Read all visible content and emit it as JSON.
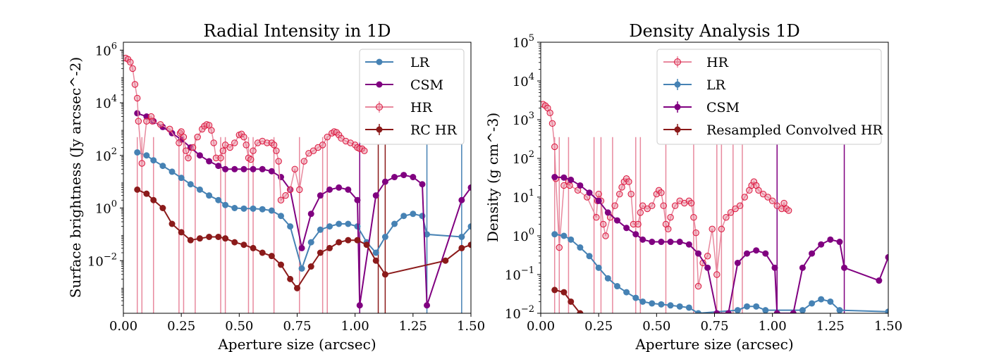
{
  "chart_data": [
    {
      "type": "line",
      "title": "Radial Intensity in 1D",
      "xlabel": "Aperture size (arcsec)",
      "ylabel": "Surface brightness (Jy arcsec^-2)",
      "xlim": [
        0,
        1.5
      ],
      "ylim": [
        0.0001,
        2000000
      ],
      "yscale": "log",
      "grid": false,
      "legend_placement": "top-right",
      "xticks": [
        {
          "v": 0.0,
          "label": "0.00"
        },
        {
          "v": 0.25,
          "label": "0.25"
        },
        {
          "v": 0.5,
          "label": "0.50"
        },
        {
          "v": 0.75,
          "label": "0.75"
        },
        {
          "v": 1.0,
          "label": "1.00"
        },
        {
          "v": 1.25,
          "label": "1.25"
        },
        {
          "v": 1.5,
          "label": "1.50"
        }
      ],
      "yticks": [
        {
          "v": 0.01,
          "b": "10",
          "e": "−2"
        },
        {
          "v": 1,
          "b": "10",
          "e": "0"
        },
        {
          "v": 100,
          "b": "10",
          "e": "2"
        },
        {
          "v": 10000,
          "b": "10",
          "e": "4"
        },
        {
          "v": 1000000,
          "b": "10",
          "e": "6"
        }
      ],
      "legend": [
        "LR",
        "CSM",
        "HR",
        "RC HR"
      ],
      "series": [
        {
          "name": "LR",
          "color": "#4682b4",
          "marker": "filled",
          "line": true,
          "x": [
            0.06,
            0.1,
            0.13,
            0.17,
            0.21,
            0.25,
            0.29,
            0.33,
            0.37,
            0.41,
            0.44,
            0.48,
            0.52,
            0.56,
            0.6,
            0.64,
            0.68,
            0.72,
            0.77,
            0.81,
            0.85,
            0.89,
            0.93,
            0.97,
            1.01,
            1.05,
            1.09,
            1.13,
            1.17,
            1.21,
            1.25,
            1.29,
            1.31,
            1.46,
            1.5
          ],
          "y": [
            130,
            100,
            65,
            40,
            24,
            14,
            8,
            5,
            3,
            2,
            1.3,
            1,
            0.95,
            0.95,
            0.9,
            0.8,
            0.5,
            0.2,
            0.005,
            0.05,
            0.15,
            0.2,
            0.25,
            0.25,
            0.2,
            0.05,
            0.02,
            0.08,
            0.25,
            0.5,
            0.6,
            0.5,
            0.1,
            0.08,
            0.2
          ]
        },
        {
          "name": "CSM",
          "color": "#800080",
          "marker": "filled",
          "line": true,
          "x": [
            0.06,
            0.1,
            0.13,
            0.17,
            0.21,
            0.25,
            0.29,
            0.33,
            0.37,
            0.41,
            0.44,
            0.48,
            0.52,
            0.56,
            0.6,
            0.64,
            0.68,
            0.72,
            0.77,
            0.81,
            0.85,
            0.89,
            0.93,
            0.97,
            1.01,
            1.02,
            1.09,
            1.13,
            1.17,
            1.21,
            1.25,
            1.29,
            1.31,
            1.46,
            1.5
          ],
          "y": [
            4000,
            3000,
            2000,
            1200,
            700,
            400,
            200,
            100,
            60,
            40,
            30,
            30,
            30,
            30,
            30,
            25,
            15,
            5,
            0.03,
            0.6,
            3,
            5,
            6,
            5,
            2,
            0.0002,
            3,
            10,
            15,
            18,
            15,
            8,
            0.0002,
            2,
            6
          ]
        },
        {
          "name": "HR",
          "color": "#e8899e",
          "marker": "open",
          "line": true,
          "x": [
            0.01,
            0.02,
            0.03,
            0.04,
            0.05,
            0.06,
            0.065,
            0.08,
            0.1,
            0.12,
            0.125,
            0.16,
            0.2,
            0.24,
            0.245,
            0.25,
            0.26,
            0.27,
            0.28,
            0.3,
            0.32,
            0.34,
            0.35,
            0.36,
            0.37,
            0.38,
            0.39,
            0.4,
            0.42,
            0.43,
            0.44,
            0.46,
            0.48,
            0.5,
            0.51,
            0.52,
            0.53,
            0.54,
            0.55,
            0.56,
            0.58,
            0.6,
            0.62,
            0.64,
            0.65,
            0.66,
            0.67,
            0.68,
            0.7,
            0.72,
            0.74,
            0.76,
            0.78,
            0.8,
            0.82,
            0.84,
            0.86,
            0.88,
            0.9,
            0.91,
            0.92,
            0.93,
            0.94,
            0.96,
            0.98,
            1.0,
            1.01,
            1.02,
            1.03,
            1.04
          ],
          "y": [
            500000,
            450000,
            350000,
            200000,
            50000,
            15000,
            2000,
            50,
            2000,
            3000,
            2000,
            1500,
            1000,
            300,
            700,
            800,
            500,
            150,
            80,
            200,
            500,
            1000,
            1300,
            1500,
            1400,
            900,
            300,
            80,
            80,
            150,
            250,
            200,
            300,
            600,
            650,
            500,
            250,
            80,
            70,
            150,
            300,
            350,
            300,
            300,
            250,
            150,
            60,
            2,
            3,
            5,
            30,
            5,
            60,
            120,
            150,
            200,
            250,
            500,
            700,
            800,
            750,
            600,
            450,
            350,
            300,
            250,
            200,
            180,
            180,
            150
          ]
        },
        {
          "name": "RC HR",
          "color": "#8b1a1a",
          "marker": "filled",
          "line": true,
          "x": [
            0.06,
            0.1,
            0.13,
            0.17,
            0.21,
            0.25,
            0.29,
            0.33,
            0.37,
            0.41,
            0.44,
            0.48,
            0.52,
            0.56,
            0.6,
            0.64,
            0.68,
            0.72,
            0.75,
            0.81,
            0.85,
            0.89,
            0.93,
            0.97,
            1.01,
            1.05,
            1.09,
            1.13,
            1.39,
            1.46,
            1.5
          ],
          "y": [
            5,
            3.5,
            2,
            1,
            0.25,
            0.12,
            0.06,
            0.07,
            0.08,
            0.08,
            0.07,
            0.05,
            0.04,
            0.03,
            0.02,
            0.015,
            0.007,
            0.002,
            0.0009,
            0.006,
            0.02,
            0.03,
            0.05,
            0.06,
            0.06,
            0.04,
            0.01,
            0.003,
            0.01,
            0.03,
            0.04
          ]
        }
      ],
      "vlines": [
        {
          "x": 0.06,
          "color": "#e8899e"
        },
        {
          "x": 0.08,
          "color": "#e8899e"
        },
        {
          "x": 0.13,
          "color": "#e8899e"
        },
        {
          "x": 0.24,
          "color": "#e8899e"
        },
        {
          "x": 0.26,
          "color": "#e8899e"
        },
        {
          "x": 0.31,
          "color": "#e8899e"
        },
        {
          "x": 0.42,
          "color": "#e8899e"
        },
        {
          "x": 0.44,
          "color": "#e8899e"
        },
        {
          "x": 0.54,
          "color": "#e8899e"
        },
        {
          "x": 0.56,
          "color": "#e8899e"
        },
        {
          "x": 0.65,
          "color": "#e8899e"
        },
        {
          "x": 0.76,
          "color": "#e8899e"
        },
        {
          "x": 0.86,
          "color": "#e8899e"
        },
        {
          "x": 0.88,
          "color": "#e8899e"
        },
        {
          "x": 1.02,
          "color": "#800080"
        },
        {
          "x": 1.1,
          "color": "#8b1a1a"
        },
        {
          "x": 1.13,
          "color": "#8b1a1a"
        },
        {
          "x": 1.31,
          "color": "#4682b4"
        },
        {
          "x": 1.46,
          "color": "#4682b4"
        }
      ]
    },
    {
      "type": "line",
      "title": "Density Analysis 1D",
      "xlabel": "Aperture size (arcsec)",
      "ylabel": "Density (g cm^-3)",
      "xlim": [
        0,
        1.5
      ],
      "ylim": [
        0.01,
        100000
      ],
      "yscale": "log",
      "grid": false,
      "legend_placement": "top-center",
      "xticks": [
        {
          "v": 0.0,
          "label": "0.00"
        },
        {
          "v": 0.25,
          "label": "0.25"
        },
        {
          "v": 0.5,
          "label": "0.50"
        },
        {
          "v": 0.75,
          "label": "0.75"
        },
        {
          "v": 1.0,
          "label": "1.00"
        },
        {
          "v": 1.25,
          "label": "1.25"
        },
        {
          "v": 1.5,
          "label": "1.50"
        }
      ],
      "yticks": [
        {
          "v": 0.01,
          "b": "10",
          "e": "−2"
        },
        {
          "v": 0.1,
          "b": "10",
          "e": "−1"
        },
        {
          "v": 1,
          "b": "10",
          "e": "0"
        },
        {
          "v": 10,
          "b": "10",
          "e": "1"
        },
        {
          "v": 100,
          "b": "10",
          "e": "2"
        },
        {
          "v": 1000,
          "b": "10",
          "e": "3"
        },
        {
          "v": 10000,
          "b": "10",
          "e": "4"
        },
        {
          "v": 100000,
          "b": "10",
          "e": "5"
        }
      ],
      "legend": [
        "HR",
        "LR",
        "CSM",
        "Resampled Convolved HR"
      ],
      "series": [
        {
          "name": "HR",
          "color": "#e8899e",
          "marker": "open",
          "line": true,
          "x": [
            0.01,
            0.02,
            0.03,
            0.04,
            0.05,
            0.06,
            0.065,
            0.08,
            0.1,
            0.12,
            0.125,
            0.16,
            0.2,
            0.24,
            0.245,
            0.25,
            0.26,
            0.27,
            0.28,
            0.3,
            0.32,
            0.34,
            0.35,
            0.36,
            0.37,
            0.38,
            0.39,
            0.4,
            0.42,
            0.43,
            0.44,
            0.46,
            0.48,
            0.5,
            0.51,
            0.52,
            0.53,
            0.54,
            0.55,
            0.56,
            0.58,
            0.6,
            0.62,
            0.64,
            0.65,
            0.66,
            0.67,
            0.68,
            0.7,
            0.72,
            0.74,
            0.76,
            0.78,
            0.8,
            0.82,
            0.84,
            0.86,
            0.88,
            0.9,
            0.91,
            0.92,
            0.93,
            0.94,
            0.96,
            0.98,
            1.0,
            1.02,
            1.04,
            1.05,
            1.06,
            1.07
          ],
          "y": [
            2500,
            2300,
            2000,
            1500,
            800,
            200,
            30,
            0.5,
            20,
            25,
            20,
            15,
            10,
            3,
            8,
            12,
            8,
            2,
            1,
            3,
            6,
            12,
            18,
            25,
            30,
            25,
            12,
            2,
            2,
            4,
            6,
            5,
            6,
            12,
            15,
            13,
            6,
            2,
            1.5,
            3,
            6,
            8,
            7,
            8,
            7,
            3,
            1.2,
            0.05,
            0.2,
            0.3,
            1.5,
            0.1,
            1.5,
            3,
            4,
            5,
            6,
            10,
            15,
            20,
            25,
            20,
            15,
            12,
            10,
            8,
            6,
            5,
            7,
            5,
            4.5
          ]
        },
        {
          "name": "LR",
          "color": "#4682b4",
          "marker": "filled",
          "line": true,
          "x": [
            0.06,
            0.1,
            0.13,
            0.17,
            0.21,
            0.25,
            0.29,
            0.33,
            0.37,
            0.41,
            0.44,
            0.48,
            0.52,
            0.56,
            0.6,
            0.64,
            0.68,
            0.85,
            0.89,
            0.93,
            0.97,
            1.13,
            1.17,
            1.21,
            1.25,
            1.29,
            1.5
          ],
          "y": [
            1.1,
            1,
            0.8,
            0.5,
            0.3,
            0.15,
            0.08,
            0.05,
            0.035,
            0.025,
            0.02,
            0.018,
            0.017,
            0.016,
            0.015,
            0.014,
            0.01,
            0.012,
            0.015,
            0.015,
            0.012,
            0.012,
            0.018,
            0.023,
            0.02,
            0.012,
            0.011
          ]
        },
        {
          "name": "CSM",
          "color": "#800080",
          "marker": "filled",
          "line": true,
          "x": [
            0.06,
            0.1,
            0.13,
            0.17,
            0.21,
            0.25,
            0.29,
            0.33,
            0.37,
            0.41,
            0.44,
            0.48,
            0.52,
            0.56,
            0.6,
            0.64,
            0.68,
            0.72,
            0.76,
            0.81,
            0.85,
            0.89,
            0.93,
            0.97,
            1.01,
            1.02,
            1.09,
            1.13,
            1.17,
            1.21,
            1.25,
            1.29,
            1.31,
            1.46,
            1.5
          ],
          "y": [
            33,
            32,
            28,
            20,
            13,
            8,
            4,
            2.5,
            1.6,
            1.1,
            0.8,
            0.7,
            0.7,
            0.7,
            0.7,
            0.6,
            0.35,
            0.15,
            0.01,
            0.01,
            0.2,
            0.35,
            0.42,
            0.35,
            0.15,
            0.01,
            0.01,
            0.15,
            0.35,
            0.6,
            0.8,
            0.7,
            0.15,
            0.07,
            0.28
          ]
        },
        {
          "name": "Resampled Convolved HR",
          "color": "#8b1a1a",
          "marker": "filled",
          "line": true,
          "x": [
            0.06,
            0.1,
            0.13,
            0.17
          ],
          "y": [
            0.04,
            0.035,
            0.02,
            0.01
          ]
        }
      ],
      "vlines": [
        {
          "x": 0.06,
          "color": "#e8899e"
        },
        {
          "x": 0.08,
          "color": "#e8899e"
        },
        {
          "x": 0.12,
          "color": "#e8899e"
        },
        {
          "x": 0.23,
          "color": "#e8899e"
        },
        {
          "x": 0.26,
          "color": "#e8899e"
        },
        {
          "x": 0.31,
          "color": "#e8899e"
        },
        {
          "x": 0.41,
          "color": "#e8899e"
        },
        {
          "x": 0.43,
          "color": "#e8899e"
        },
        {
          "x": 0.54,
          "color": "#e8899e"
        },
        {
          "x": 0.66,
          "color": "#e8899e"
        },
        {
          "x": 0.76,
          "color": "#e8899e"
        },
        {
          "x": 0.78,
          "color": "#e8899e"
        },
        {
          "x": 0.83,
          "color": "#e8899e"
        },
        {
          "x": 0.87,
          "color": "#e8899e"
        },
        {
          "x": 1.02,
          "color": "#800080"
        },
        {
          "x": 1.31,
          "color": "#800080"
        }
      ]
    }
  ]
}
